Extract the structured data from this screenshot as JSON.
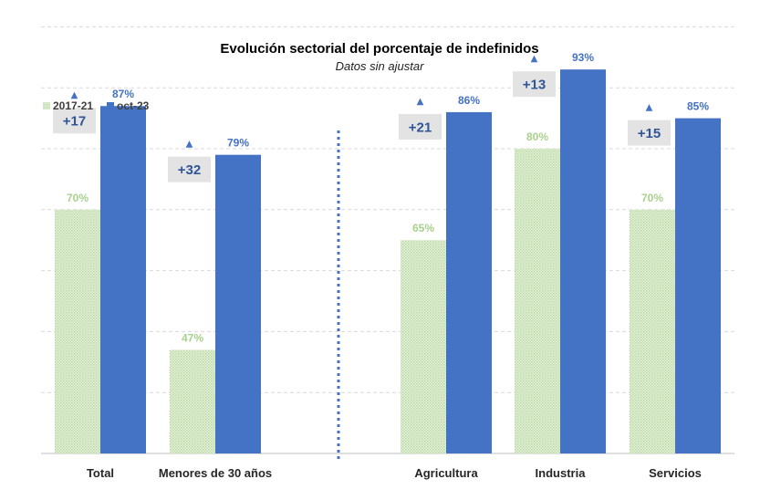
{
  "chart_data": {
    "type": "bar",
    "title": "Evolución sectorial del porcentaje de indefinidos",
    "subtitle": "Datos sin ajustar",
    "categories": [
      "Total",
      "Menores de 30 años",
      "Agricultura",
      "Industria",
      "Servicios"
    ],
    "series": [
      {
        "name": "2017-21",
        "values": [
          70,
          47,
          65,
          80,
          70
        ],
        "labels": [
          "70%",
          "47%",
          "65%",
          "80%",
          "70%"
        ],
        "color": "#a9d18e",
        "pattern": "dotted-fill"
      },
      {
        "name": "oct-23",
        "values": [
          87,
          79,
          86,
          93,
          85
        ],
        "labels": [
          "87%",
          "79%",
          "86%",
          "93%",
          "85%"
        ],
        "color": "#4472c4"
      }
    ],
    "differences": [
      "+17",
      "+32",
      "+21",
      "+13",
      "+15"
    ],
    "difference_marker": "▲",
    "ylim": [
      30,
      100
    ],
    "grid": true,
    "legend": "top-left",
    "separator": "dotted vertical line between Menores de 30 años and Agricultura"
  }
}
